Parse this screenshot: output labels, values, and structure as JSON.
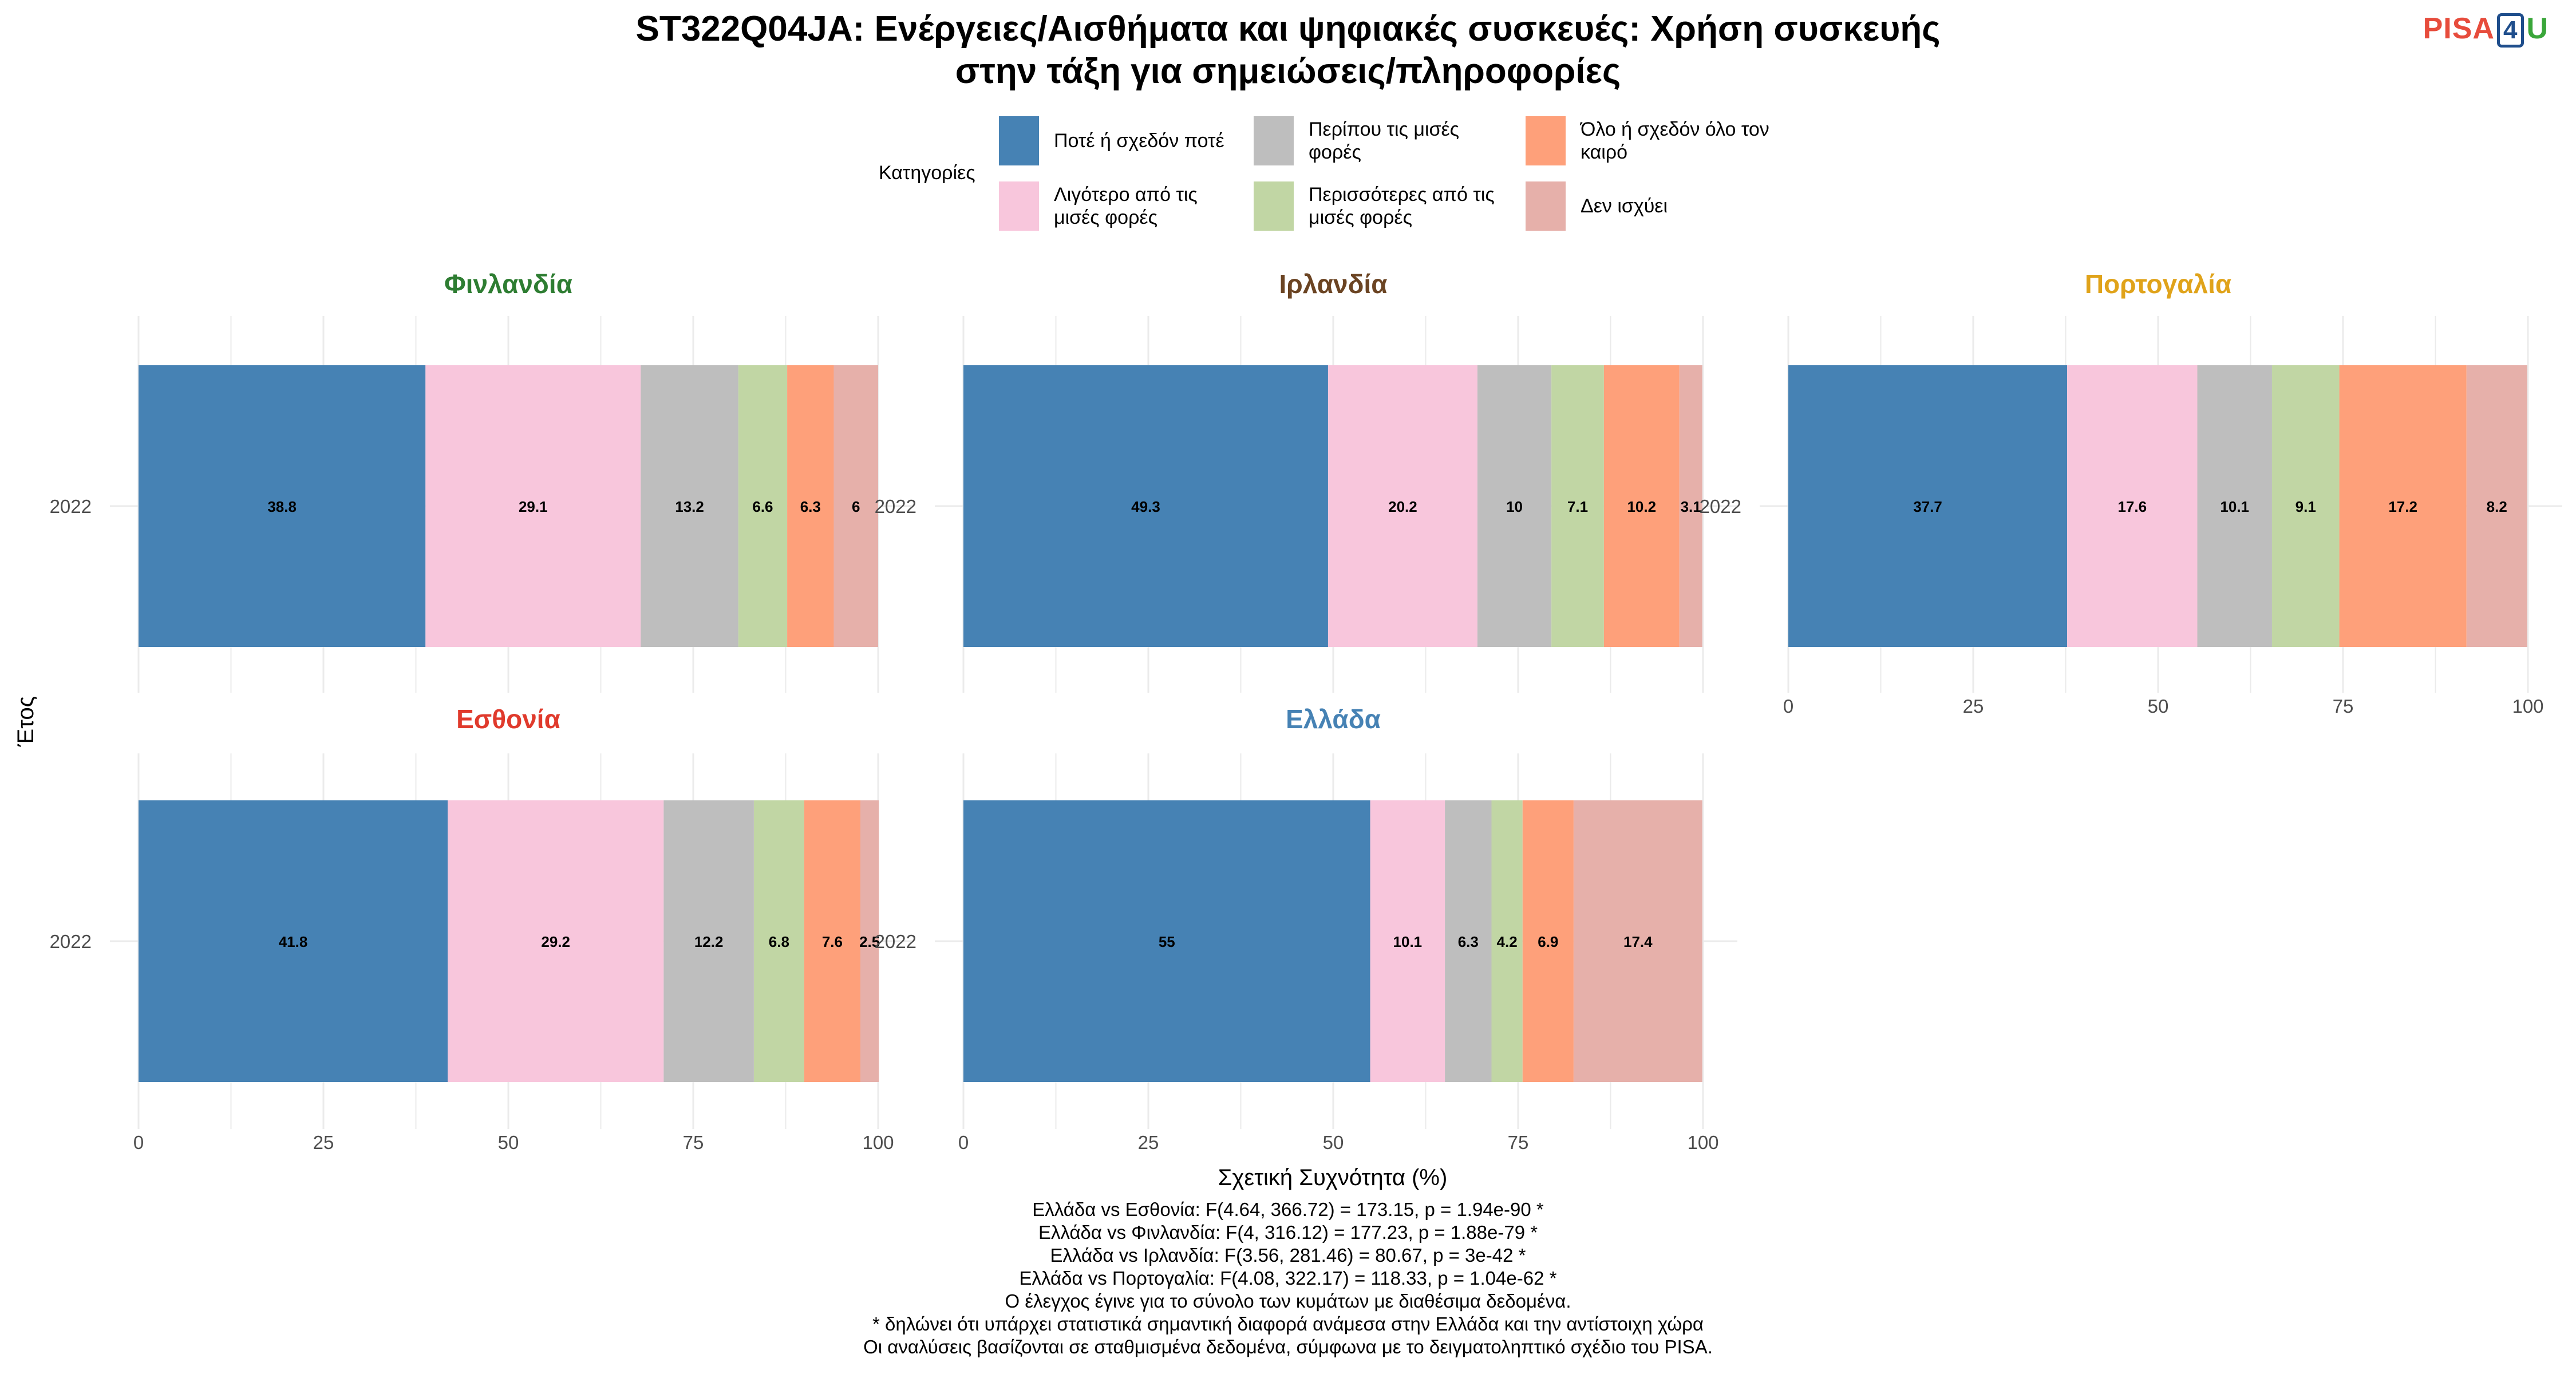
{
  "title_lines": [
    "ST322Q04JA: Ενέργειες/Αισθήματα και ψηφιακές συσκευές: Χρήση συσκευής",
    "στην τάξη για σημειώσεις/πληροφορίες"
  ],
  "logo": {
    "part1": "PISA",
    "part2": "4",
    "part3": "U"
  },
  "legend": {
    "title": "Κατηγορίες",
    "items": [
      {
        "label": "Ποτέ ή σχεδόν ποτέ",
        "color": "#4682b4"
      },
      {
        "label": "Λιγότερο από τις μισές φορές",
        "color": "#f8c6dc"
      },
      {
        "label": "Περίπου τις μισές φορές",
        "color": "#bebebe"
      },
      {
        "label": "Περισσότερες από τις μισές φορές",
        "color": "#c1d6a4"
      },
      {
        "label": "Όλο ή σχεδόν όλο τον καιρό",
        "color": "#fea07a"
      },
      {
        "label": "Δεν ισχύει",
        "color": "#e6b0aa"
      }
    ]
  },
  "chart_data": {
    "type": "bar",
    "orientation": "horizontal",
    "stacked": true,
    "xlabel": "Σχετική Συχνότητα (%)",
    "ylabel": "Έτος",
    "xlim": [
      0,
      100
    ],
    "xticks": [
      0,
      25,
      50,
      75,
      100
    ],
    "categories": [
      "2022"
    ],
    "series_names": [
      "Ποτέ ή σχεδόν ποτέ",
      "Λιγότερο από τις μισές φορές",
      "Περίπου τις μισές φορές",
      "Περισσότερες από τις μισές φορές",
      "Όλο ή σχεδόν όλο τον καιρό",
      "Δεν ισχύει"
    ],
    "series_colors": [
      "#4682b4",
      "#f8c6dc",
      "#bebebe",
      "#c1d6a4",
      "#fea07a",
      "#e6b0aa"
    ],
    "panels": [
      {
        "country": "Φινλανδία",
        "color": "#2e7d32",
        "year": "2022",
        "values": [
          38.8,
          29.1,
          13.2,
          6.6,
          6.3,
          6
        ]
      },
      {
        "country": "Ιρλανδία",
        "color": "#6b4423",
        "year": "2022",
        "values": [
          49.3,
          20.2,
          10,
          7.1,
          10.2,
          3.1
        ]
      },
      {
        "country": "Πορτογαλία",
        "color": "#e0a31a",
        "year": "2022",
        "values": [
          37.7,
          17.6,
          10.1,
          9.1,
          17.2,
          8.2
        ]
      },
      {
        "country": "Εσθονία",
        "color": "#e03a2c",
        "year": "2022",
        "values": [
          41.8,
          29.2,
          12.2,
          6.8,
          7.6,
          2.5
        ]
      },
      {
        "country": "Ελλάδα",
        "color": "#4682b4",
        "year": "2022",
        "values": [
          55,
          10.1,
          6.3,
          4.2,
          6.9,
          17.4
        ]
      }
    ]
  },
  "footnotes": [
    "Ελλάδα vs Εσθονία: F(4.64, 366.72) = 173.15, p = 1.94e-90 *",
    "Ελλάδα vs Φινλανδία: F(4, 316.12) = 177.23, p = 1.88e-79 *",
    "Ελλάδα vs Ιρλανδία: F(3.56, 281.46) = 80.67, p = 3e-42 *",
    "Ελλάδα vs Πορτογαλία: F(4.08, 322.17) = 118.33, p = 1.04e-62 *",
    "Ο έλεγχος έγινε για το σύνολο των κυμάτων με διαθέσιμα δεδομένα.",
    "* δηλώνει ότι υπάρχει στατιστικά σημαντική διαφορά ανάμεσα στην Ελλάδα και την αντίστοιχη χώρα",
    "Οι αναλύσεις βασίζονται σε σταθμισμένα δεδομένα, σύμφωνα με το δειγματοληπτικό σχέδιο του PISA."
  ]
}
